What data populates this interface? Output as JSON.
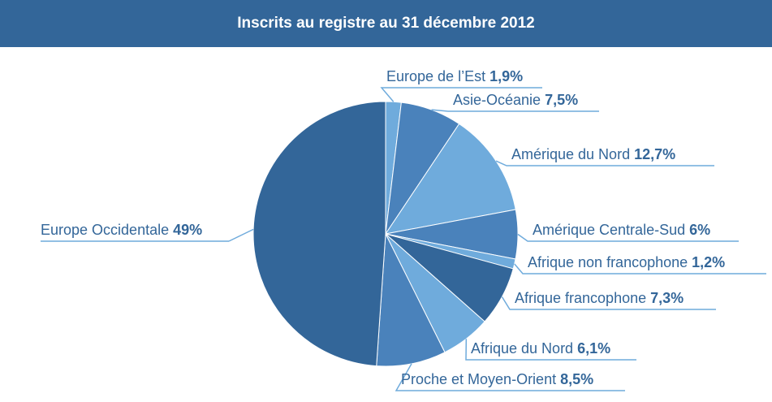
{
  "chart_data": {
    "type": "pie",
    "title": "Inscrits au registre au 31 décembre 2012",
    "slices": [
      {
        "label": "Europe de l’Est",
        "value": 1.9,
        "display": "1,9%",
        "color": "#6fabdc"
      },
      {
        "label": "Asie-Océanie",
        "value": 7.5,
        "display": "7,5%",
        "color": "#4a82bb"
      },
      {
        "label": "Amérique du Nord",
        "value": 12.7,
        "display": "12,7%",
        "color": "#6fabdc"
      },
      {
        "label": "Amérique Centrale-Sud",
        "value": 6,
        "display": "6%",
        "color": "#4a82bb"
      },
      {
        "label": "Afrique non francophone",
        "value": 1.2,
        "display": "1,2%",
        "color": "#6fabdc"
      },
      {
        "label": "Afrique francophone",
        "value": 7.3,
        "display": "7,3%",
        "color": "#336699"
      },
      {
        "label": "Afrique du Nord",
        "value": 6.1,
        "display": "6,1%",
        "color": "#6fabdc"
      },
      {
        "label": "Proche et Moyen-Orient",
        "value": 8.5,
        "display": "8,5%",
        "color": "#4a82bb"
      },
      {
        "label": "Europe Occidentale",
        "value": 49,
        "display": "49%",
        "color": "#336699"
      }
    ],
    "line_color": "#6fabdc",
    "start_angle": "12 o'clock",
    "direction": "clockwise"
  }
}
